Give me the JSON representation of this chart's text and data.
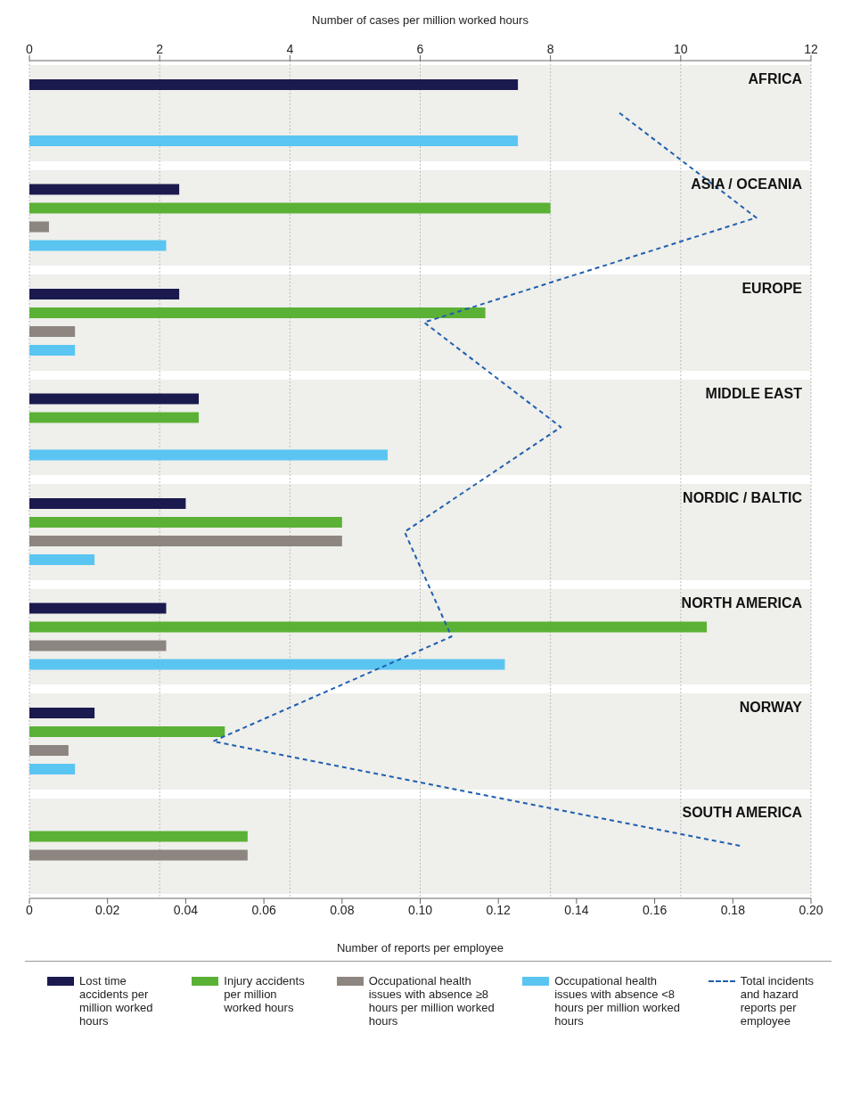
{
  "chart_data": {
    "type": "bar",
    "orientation": "horizontal",
    "categories": [
      "AFRICA",
      "ASIA / OCEANIA",
      "EUROPE",
      "MIDDLE EAST",
      "NORDIC / BALTIC",
      "NORTH AMERICA",
      "NORWAY",
      "SOUTH AMERICA"
    ],
    "series": [
      {
        "name": "Lost time accidents per million worked hours",
        "color": "#1a1a4e",
        "axis": "x2",
        "values": [
          7.5,
          2.3,
          2.3,
          2.6,
          2.4,
          2.1,
          1.0,
          null
        ]
      },
      {
        "name": "Injury accidents per million worked hours",
        "color": "#5bb135",
        "axis": "x2",
        "values": [
          null,
          8.0,
          7.0,
          2.6,
          4.8,
          10.4,
          3.0,
          3.35
        ]
      },
      {
        "name": "Occupational health issues with absence ≥8 hours per million worked hours",
        "color": "#8c8580",
        "axis": "x2",
        "values": [
          null,
          0.3,
          0.7,
          null,
          4.8,
          2.1,
          0.6,
          3.35
        ]
      },
      {
        "name": "Occupational health issues with absence <8 hours per million worked hours",
        "color": "#5bc5f2",
        "axis": "x2",
        "values": [
          7.5,
          2.1,
          0.7,
          5.5,
          1.0,
          7.3,
          0.7,
          null
        ]
      },
      {
        "name": "Total incidents and hazard reports per employee",
        "type": "line",
        "color": "#1f5fb0",
        "line_style": "dashed",
        "marker": "none",
        "values": [
          0.151,
          0.186,
          0.101,
          0.136,
          0.096,
          0.108,
          0.047,
          0.182
        ]
      }
    ],
    "xlim": [
      0,
      0.2
    ],
    "xticks": [
      {
        "value": 0,
        "label": "0"
      },
      {
        "value": 0.02,
        "label": "0.02"
      },
      {
        "value": 0.04,
        "label": "0.04"
      },
      {
        "value": 0.06,
        "label": "0.06"
      },
      {
        "value": 0.08,
        "label": "0.08"
      },
      {
        "value": 0.1,
        "label": "0.10"
      },
      {
        "value": 0.12,
        "label": "0.12"
      },
      {
        "value": 0.14,
        "label": "0.14"
      },
      {
        "value": 0.16,
        "label": "0.16"
      },
      {
        "value": 0.18,
        "label": "0.18"
      },
      {
        "value": 0.2,
        "label": "0.20"
      }
    ],
    "x2lim": [
      0,
      12
    ],
    "x2ticks": [
      0,
      2,
      4,
      6,
      8,
      10,
      12
    ],
    "xlabel": "Number of reports per employee",
    "x2label": "Number of cases per million worked hours",
    "grid": "x",
    "legend": "bottom"
  }
}
